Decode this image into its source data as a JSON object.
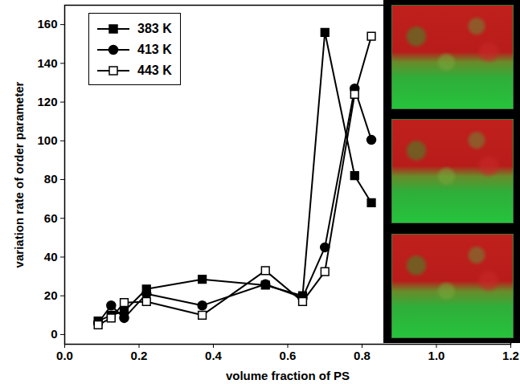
{
  "chart_data": {
    "type": "line",
    "x_label": "volume fraction of PS",
    "y_label": "variation rate of order parameter",
    "x": [
      0.09,
      0.125,
      0.16,
      0.22,
      0.37,
      0.54,
      0.64,
      0.7,
      0.78,
      0.825
    ],
    "series": [
      {
        "name": "383 K",
        "color": "#000000",
        "marker": "square",
        "values": [
          7,
          10,
          12,
          23.5,
          28.5,
          25.5,
          20,
          156,
          82,
          68
        ]
      },
      {
        "name": "413 K",
        "color": "#000000",
        "marker": "circle",
        "values": [
          6,
          15,
          8.5,
          21,
          15,
          26,
          19,
          45,
          127,
          100.5
        ]
      },
      {
        "name": "443 K",
        "color": "#000000",
        "marker": "open-square",
        "values": [
          5,
          8.5,
          16.5,
          17,
          10,
          33,
          17,
          32.5,
          124,
          154
        ]
      }
    ],
    "xlim": [
      0,
      1.2
    ],
    "xticks": [
      {
        "value": 0,
        "label": "0.0"
      },
      0.2,
      0.4,
      0.6,
      0.8,
      {
        "value": 1,
        "label": "1.0"
      },
      1.2
    ],
    "ylim": [
      -5,
      170
    ],
    "yticks": [
      0,
      20,
      40,
      60,
      80,
      100,
      120,
      140,
      160
    ],
    "legend": "top-left"
  }
}
